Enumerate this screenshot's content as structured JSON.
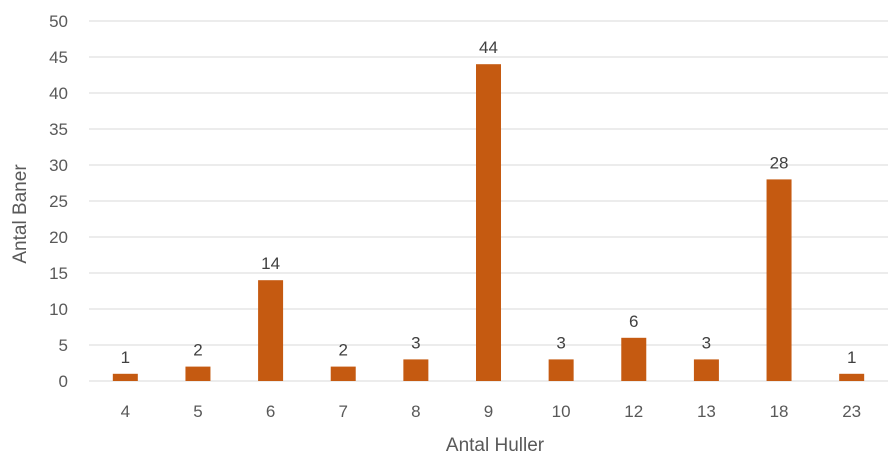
{
  "chart_data": {
    "type": "bar",
    "title": "",
    "xlabel": "Antal Huller",
    "ylabel": "Antal Baner",
    "categories": [
      "4",
      "5",
      "6",
      "7",
      "8",
      "9",
      "10",
      "12",
      "13",
      "18",
      "23"
    ],
    "values": [
      1,
      2,
      14,
      2,
      3,
      44,
      3,
      6,
      3,
      28,
      1
    ],
    "ylim": [
      0,
      50
    ],
    "yticks": [
      0,
      5,
      10,
      15,
      20,
      25,
      30,
      35,
      40,
      45,
      50
    ],
    "grid": true,
    "legend": "none",
    "bar_color": "#C55A11",
    "data_labels": true
  }
}
